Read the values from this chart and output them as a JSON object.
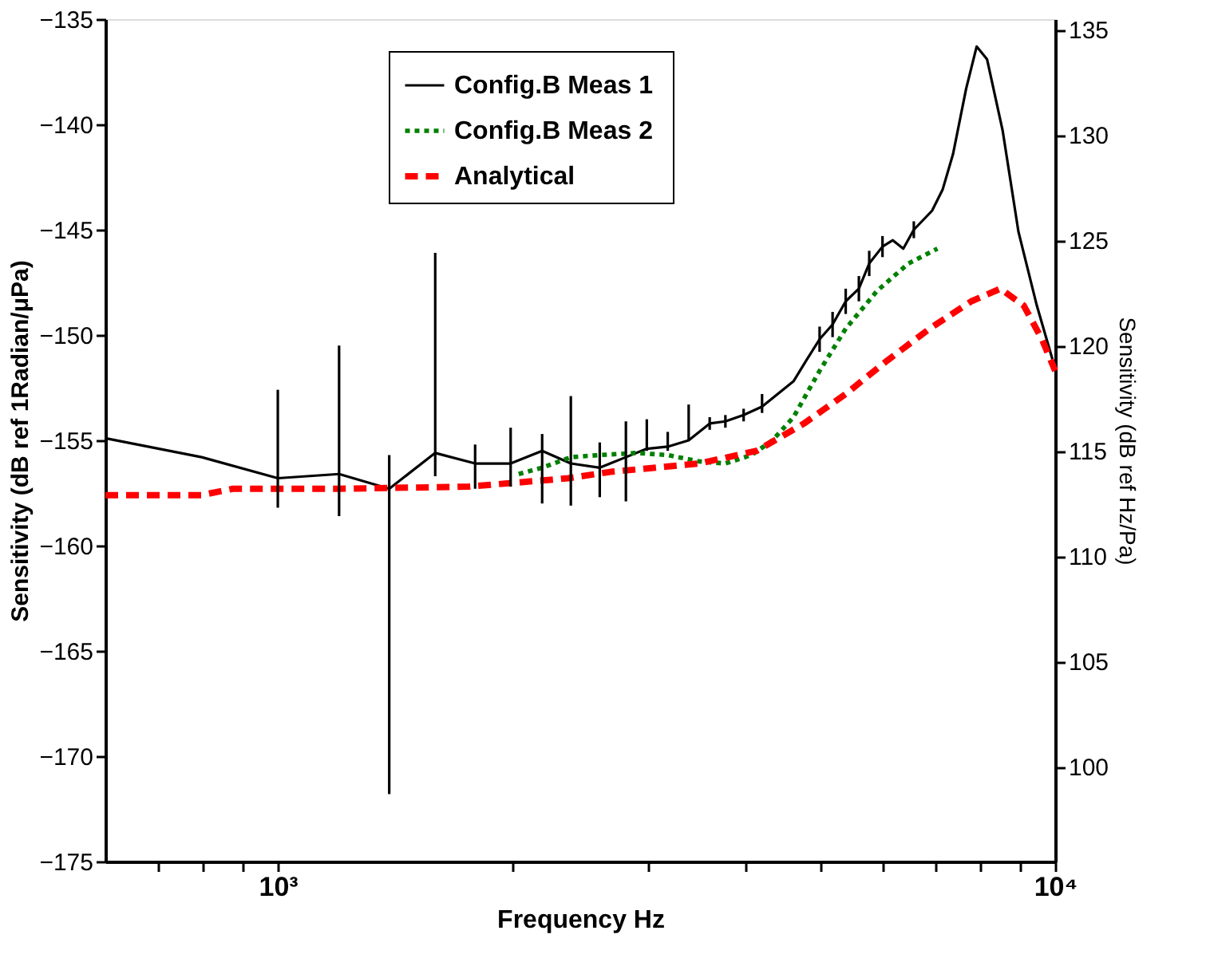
{
  "chart_data": {
    "type": "line",
    "xlabel": "Frequency Hz",
    "ylabel": "Sensitivity (dB ref 1Radian/μPa)",
    "y2label": "Sensitivity (dB ref Hz/Pa)",
    "log": "x",
    "grid": false,
    "legend": "top",
    "marker": "none",
    "xlim": [
      600,
      10000
    ],
    "xticks": [
      {
        "value": 700,
        "label": null
      },
      {
        "value": 800,
        "label": null
      },
      {
        "value": 900,
        "label": null
      },
      {
        "value": 1000,
        "label": "10³"
      },
      {
        "value": 2000,
        "label": null
      },
      {
        "value": 3000,
        "label": null
      },
      {
        "value": 4000,
        "label": null
      },
      {
        "value": 5000,
        "label": null
      },
      {
        "value": 6000,
        "label": null
      },
      {
        "value": 7000,
        "label": null
      },
      {
        "value": 8000,
        "label": null
      },
      {
        "value": 9000,
        "label": null
      },
      {
        "value": 10000,
        "label": "10⁴"
      }
    ],
    "ylim": [
      -175,
      -135
    ],
    "yticks": [
      -175,
      -170,
      -165,
      -160,
      -155,
      -150,
      -145,
      -140,
      -135
    ],
    "y2lim": [
      95.5,
      135.5
    ],
    "y2ticks": [
      100,
      105,
      110,
      115,
      120,
      125,
      130,
      135
    ],
    "series": [
      {
        "name": "Config.B  Meas 1",
        "color": "#000000",
        "line_style": "solid",
        "x": [
          600,
          798,
          1000,
          1199,
          1391,
          1594,
          1794,
          1993,
          2188,
          2382,
          2595,
          2804,
          2983,
          3174,
          3377,
          3594,
          3765,
          3974,
          4197,
          4606,
          4786,
          4977,
          5172,
          5377,
          5591,
          5765,
          5996,
          6182,
          6377,
          6579,
          6943,
          7164,
          7390,
          7682,
          7925,
          8172,
          8560,
          8970,
          9471,
          10000
        ],
        "values": [
          -154.9,
          -155.8,
          -156.8,
          -156.6,
          -157.3,
          -155.6,
          -156.1,
          -156.1,
          -155.5,
          -156.1,
          -156.3,
          -155.8,
          -155.4,
          -155.3,
          -155.0,
          -154.2,
          -154.1,
          -153.8,
          -153.4,
          -152.2,
          -151.2,
          -150.2,
          -149.5,
          -148.4,
          -147.8,
          -146.6,
          -145.8,
          -145.5,
          -145.9,
          -145.0,
          -144.1,
          -143.1,
          -141.4,
          -138.3,
          -136.3,
          -136.9,
          -140.3,
          -145.1,
          -148.6,
          -151.6
        ],
        "errors": [
          null,
          null,
          [
            -158.2,
            -152.6
          ],
          [
            -158.6,
            -150.5
          ],
          [
            -171.8,
            -155.7
          ],
          [
            -156.7,
            -146.1
          ],
          [
            -157.3,
            -155.2
          ],
          [
            -157.2,
            -154.4
          ],
          [
            -158.0,
            -154.7
          ],
          [
            -158.1,
            -152.9
          ],
          [
            -157.7,
            -155.1
          ],
          [
            -157.9,
            -154.1
          ],
          [
            -155.5,
            -154.0
          ],
          [
            -155.5,
            -154.6
          ],
          [
            -155.0,
            -153.3
          ],
          0.3,
          0.3,
          0.3,
          [
            -153.7,
            -152.8
          ],
          null,
          null,
          0.6,
          0.6,
          0.6,
          0.6,
          0.6,
          0.5,
          null,
          null,
          0.4,
          null,
          null,
          null,
          null,
          null,
          null,
          null,
          null,
          null,
          null
        ]
      },
      {
        "name": "Config.B Meas 2",
        "color": "#008000",
        "line_style": "dotted",
        "x": [
          2041,
          2188,
          2382,
          2595,
          2892,
          3174,
          3483,
          3765,
          4068,
          4329,
          4606,
          4977,
          5377,
          5902,
          6476,
          7056
        ],
        "values": [
          -156.6,
          -156.3,
          -155.8,
          -155.7,
          -155.6,
          -155.7,
          -156.0,
          -156.1,
          -155.7,
          -155.0,
          -153.9,
          -151.7,
          -149.7,
          -147.9,
          -146.6,
          -145.9
        ]
      },
      {
        "name": "Analytical",
        "color": "#ff0000",
        "line_style": "dashed",
        "x": [
          600,
          798,
          876,
          1195,
          1761,
          2364,
          2677,
          3483,
          4130,
          4753,
          5377,
          6087,
          6893,
          7799,
          8501,
          9111,
          9616,
          10000
        ],
        "values": [
          -157.6,
          -157.6,
          -157.3,
          -157.3,
          -157.2,
          -156.8,
          -156.5,
          -156.1,
          -155.5,
          -154.2,
          -152.8,
          -151.2,
          -149.7,
          -148.4,
          -147.8,
          -148.6,
          -150.2,
          -151.7
        ]
      }
    ]
  }
}
